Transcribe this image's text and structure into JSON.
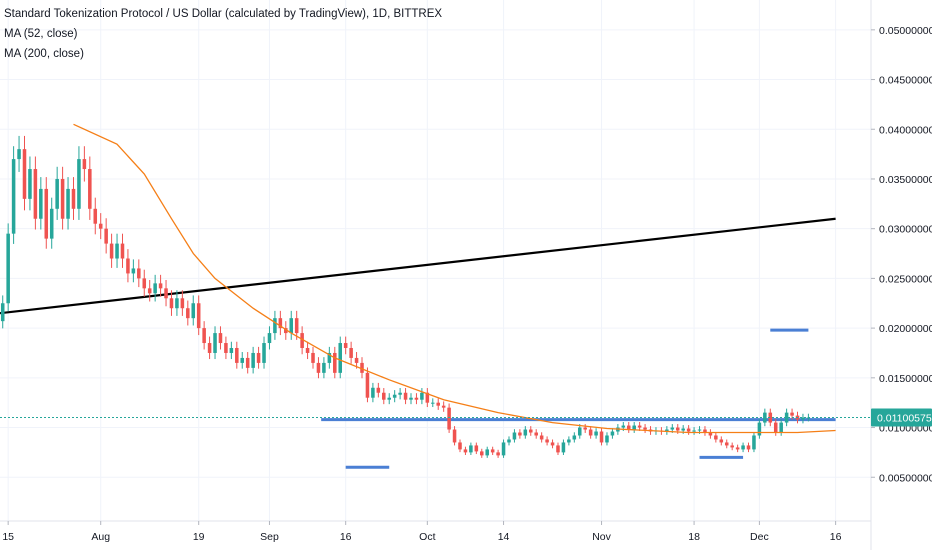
{
  "legend": {
    "title": "Standard Tokenization Protocol / US Dollar (calculated by TradingView), 1D, BITTREX",
    "ma52": "MA (52, close)",
    "ma200": "MA (200, close)"
  },
  "colors": {
    "up": "#26a69a",
    "down": "#ef5350",
    "ma": "#f57f17",
    "trendline": "#000000",
    "hline": "#4a7fd4",
    "last_price": "#26a69a"
  },
  "last_price_label": "0.01100575",
  "chart_data": {
    "type": "candlestick",
    "xlabels": [
      "15",
      "Aug",
      "19",
      "Sep",
      "16",
      "Oct",
      "14",
      "Nov",
      "18",
      "Dec",
      "16"
    ],
    "y_ticks": [
      "0.00500000",
      "0.01000000",
      "0.01500000",
      "0.02000000",
      "0.02500000",
      "0.03000000",
      "0.03500000",
      "0.04000000",
      "0.04500000",
      "0.05000000"
    ],
    "y_tick_values": [
      0.005,
      0.01,
      0.015,
      0.02,
      0.025,
      0.03,
      0.035,
      0.04,
      0.045,
      0.05
    ],
    "ylim": [
      0.0006,
      0.053
    ],
    "x_tick_days": [
      0,
      17,
      35,
      48,
      62,
      77,
      91,
      109,
      126,
      138,
      152
    ],
    "xlim": [
      -1.5,
      158.5
    ],
    "last_price": 0.01100575,
    "candles_start_day": -1,
    "closes": [
      0.0225,
      0.0295,
      0.037,
      0.038,
      0.033,
      0.036,
      0.031,
      0.034,
      0.029,
      0.032,
      0.035,
      0.031,
      0.034,
      0.032,
      0.037,
      0.036,
      0.032,
      0.0305,
      0.03,
      0.0285,
      0.027,
      0.0285,
      0.027,
      0.0255,
      0.026,
      0.025,
      0.024,
      0.0235,
      0.0245,
      0.024,
      0.023,
      0.022,
      0.023,
      0.022,
      0.021,
      0.0225,
      0.02,
      0.0185,
      0.0175,
      0.0195,
      0.0185,
      0.0175,
      0.018,
      0.0165,
      0.017,
      0.016,
      0.0175,
      0.0165,
      0.0185,
      0.0195,
      0.021,
      0.02,
      0.0195,
      0.021,
      0.0195,
      0.018,
      0.0175,
      0.0165,
      0.0155,
      0.0165,
      0.0175,
      0.0155,
      0.0185,
      0.018,
      0.017,
      0.0165,
      0.0155,
      0.013,
      0.014,
      0.0135,
      0.0128,
      0.013,
      0.0133,
      0.0135,
      0.0128,
      0.013,
      0.0128,
      0.0135,
      0.0125,
      0.0125,
      0.0122,
      0.012,
      0.0098,
      0.0085,
      0.0078,
      0.0075,
      0.0082,
      0.0076,
      0.0072,
      0.0078,
      0.0075,
      0.0072,
      0.0085,
      0.0088,
      0.0095,
      0.0092,
      0.0098,
      0.0095,
      0.0092,
      0.0088,
      0.0085,
      0.0082,
      0.0075,
      0.0085,
      0.0088,
      0.0092,
      0.01,
      0.0098,
      0.0092,
      0.0096,
      0.0085,
      0.0092,
      0.0096,
      0.01,
      0.0102,
      0.0098,
      0.0102,
      0.01,
      0.0098,
      0.0096,
      0.0097,
      0.0096,
      0.0098,
      0.01,
      0.0097,
      0.0099,
      0.0096,
      0.0097,
      0.0098,
      0.0095,
      0.0092,
      0.0088,
      0.0085,
      0.0082,
      0.008,
      0.0078,
      0.0082,
      0.0078,
      0.0092,
      0.0105,
      0.0115,
      0.0105,
      0.0095,
      0.0105,
      0.0115,
      0.0112,
      0.0108,
      0.011,
      0.01100575
    ],
    "ma52": [
      [
        12,
        0.0405
      ],
      [
        20,
        0.0385
      ],
      [
        25,
        0.0355
      ],
      [
        30,
        0.031
      ],
      [
        34,
        0.0275
      ],
      [
        38,
        0.025
      ],
      [
        45,
        0.022
      ],
      [
        52,
        0.0195
      ],
      [
        60,
        0.017
      ],
      [
        70,
        0.0148
      ],
      [
        80,
        0.0128
      ],
      [
        90,
        0.0115
      ],
      [
        100,
        0.0105
      ],
      [
        110,
        0.0099
      ],
      [
        125,
        0.0095
      ],
      [
        135,
        0.0095
      ],
      [
        145,
        0.0095
      ],
      [
        152,
        0.0097
      ]
    ],
    "trendline": [
      [
        -1.5,
        0.0215
      ],
      [
        152,
        0.031
      ]
    ],
    "hlines": [
      [
        [
          57.5,
          0.0108
        ],
        [
          152,
          0.0108
        ]
      ],
      [
        [
          62,
          0.006
        ],
        [
          70,
          0.006
        ]
      ],
      [
        [
          127,
          0.007
        ],
        [
          135,
          0.007
        ]
      ],
      [
        [
          140,
          0.0198
        ],
        [
          147,
          0.0198
        ]
      ]
    ]
  }
}
